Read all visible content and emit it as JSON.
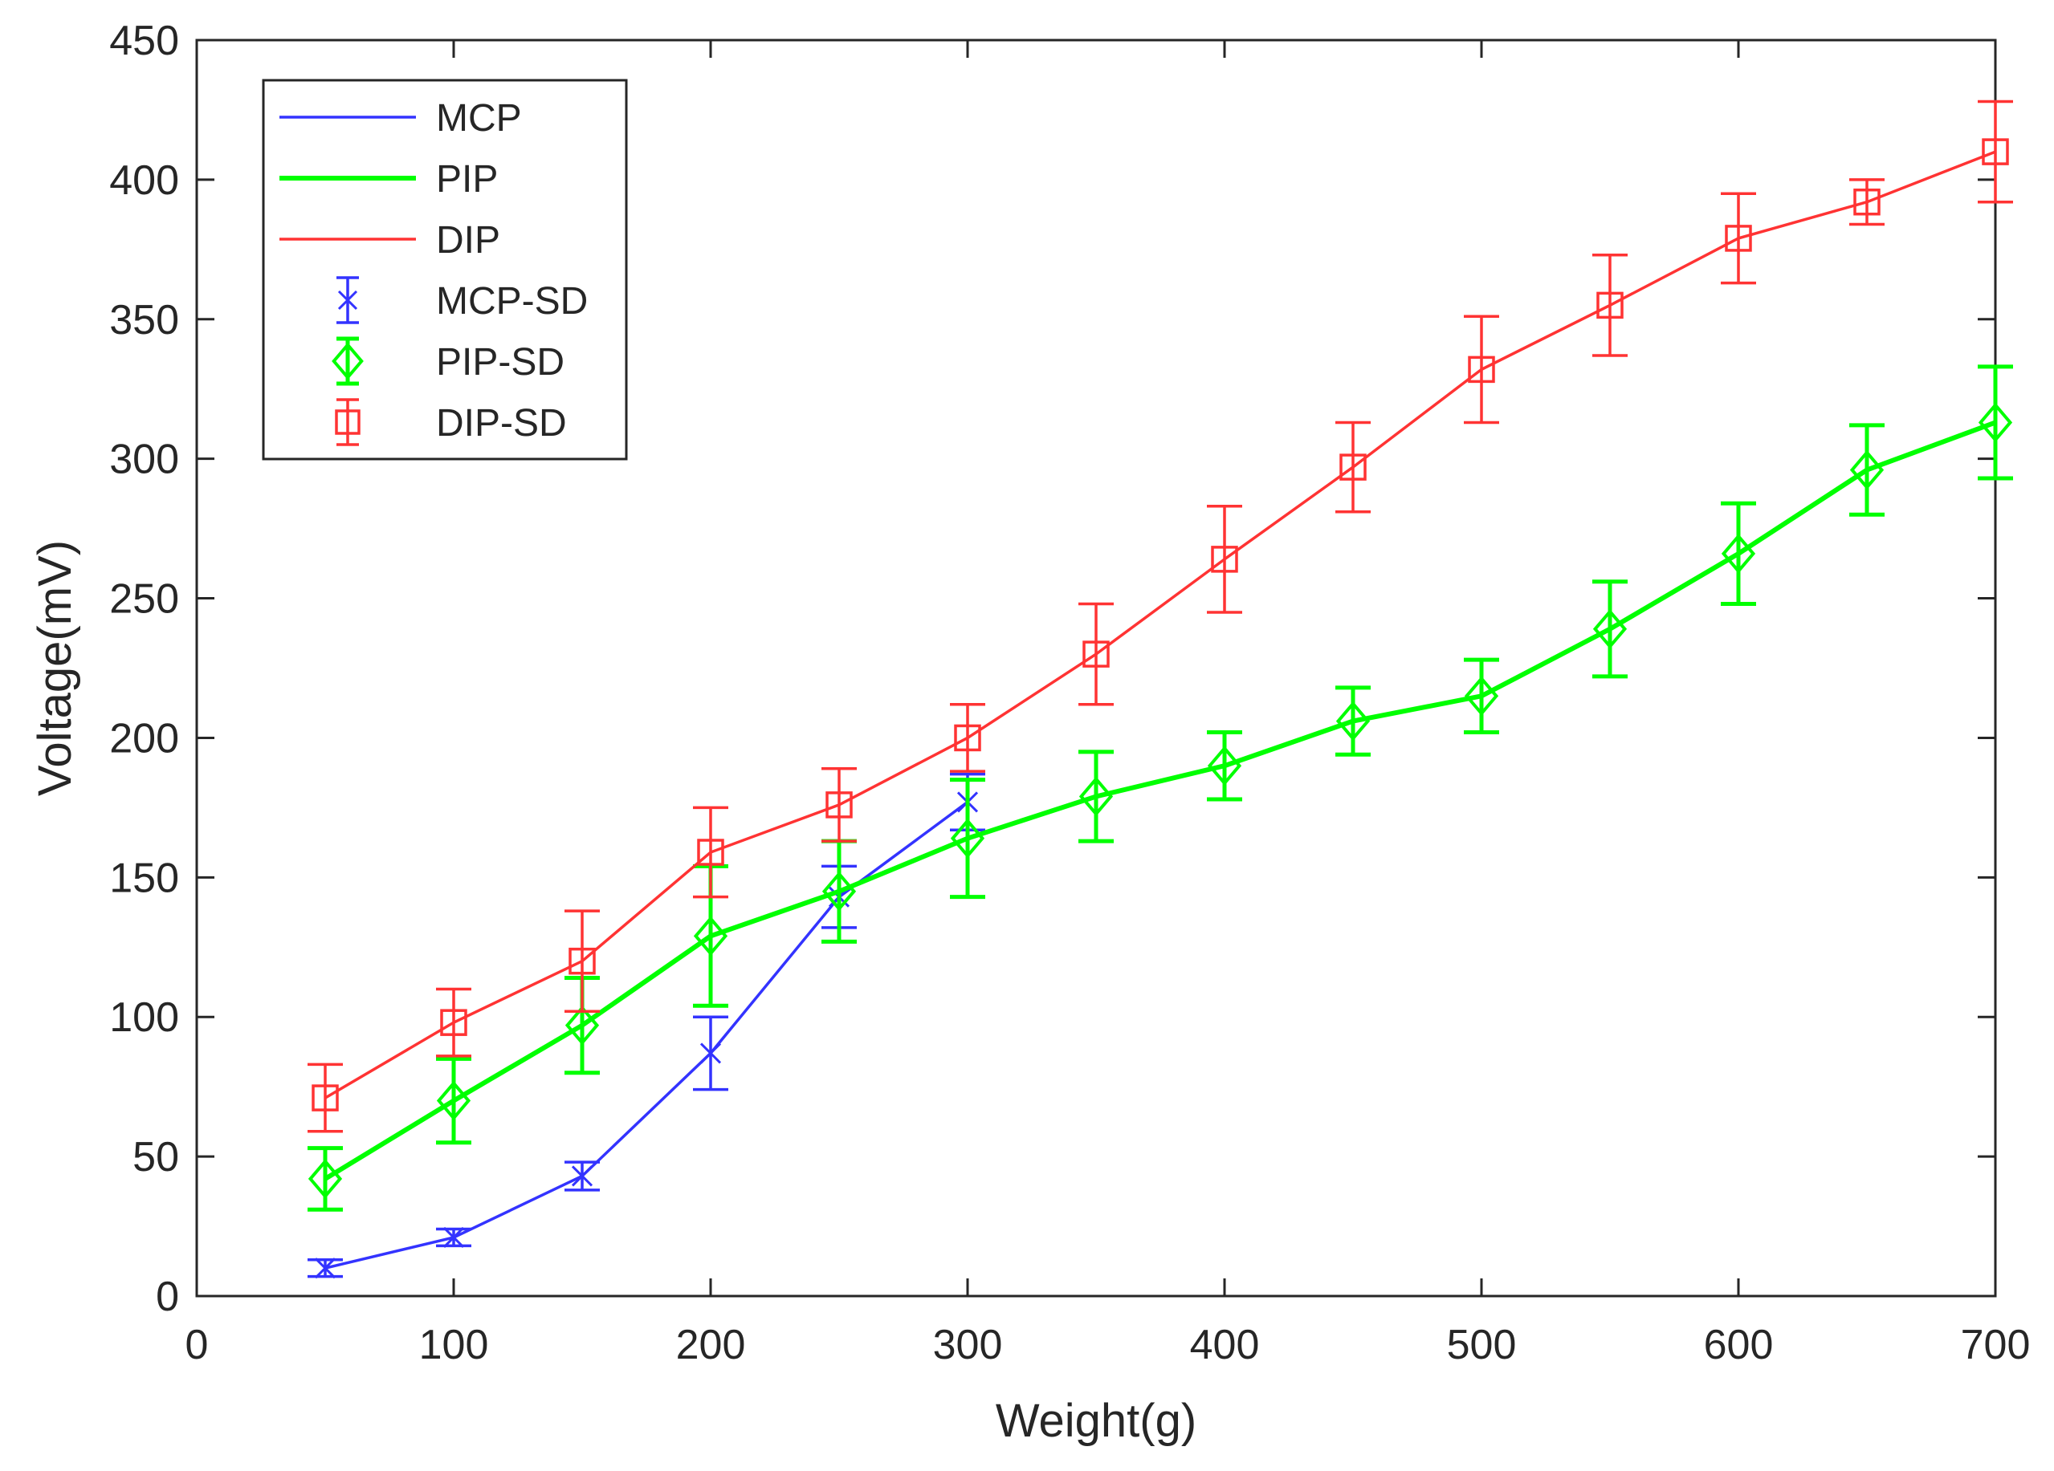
{
  "chart_data": {
    "type": "line",
    "title": "",
    "xlabel": "Weight(g)",
    "ylabel": "Voltage(mV)",
    "xlim": [
      0,
      700
    ],
    "ylim": [
      0,
      450
    ],
    "xticks": [
      0,
      100,
      200,
      300,
      400,
      500,
      600,
      700
    ],
    "yticks": [
      0,
      50,
      100,
      150,
      200,
      250,
      300,
      350,
      400,
      450
    ],
    "grid": false,
    "legend_position": "top-left",
    "series": [
      {
        "name": "MCP",
        "sd_name": "MCP-SD",
        "color": "#3333ff",
        "marker": "x",
        "x": [
          50,
          100,
          150,
          200,
          250,
          300
        ],
        "values": [
          10,
          21,
          43,
          87,
          143,
          177
        ],
        "sd": [
          3,
          3,
          5,
          13,
          11,
          10
        ]
      },
      {
        "name": "PIP",
        "sd_name": "PIP-SD",
        "color": "#00ff00",
        "marker": "diamond",
        "x": [
          50,
          100,
          150,
          200,
          250,
          300,
          350,
          400,
          450,
          500,
          550,
          600,
          650,
          700
        ],
        "values": [
          42,
          70,
          97,
          129,
          145,
          164,
          179,
          190,
          206,
          215,
          239,
          266,
          296,
          313
        ],
        "sd": [
          11,
          15,
          17,
          25,
          18,
          21,
          16,
          12,
          12,
          13,
          17,
          18,
          16,
          20
        ]
      },
      {
        "name": "DIP",
        "sd_name": "DIP-SD",
        "color": "#ff3333",
        "marker": "square",
        "x": [
          50,
          100,
          150,
          200,
          250,
          300,
          350,
          400,
          450,
          500,
          550,
          600,
          650,
          700
        ],
        "values": [
          71,
          98,
          120,
          159,
          176,
          200,
          230,
          264,
          297,
          332,
          355,
          379,
          392,
          410
        ],
        "sd": [
          12,
          12,
          18,
          16,
          13,
          12,
          18,
          19,
          16,
          19,
          18,
          16,
          8,
          18
        ]
      }
    ]
  }
}
